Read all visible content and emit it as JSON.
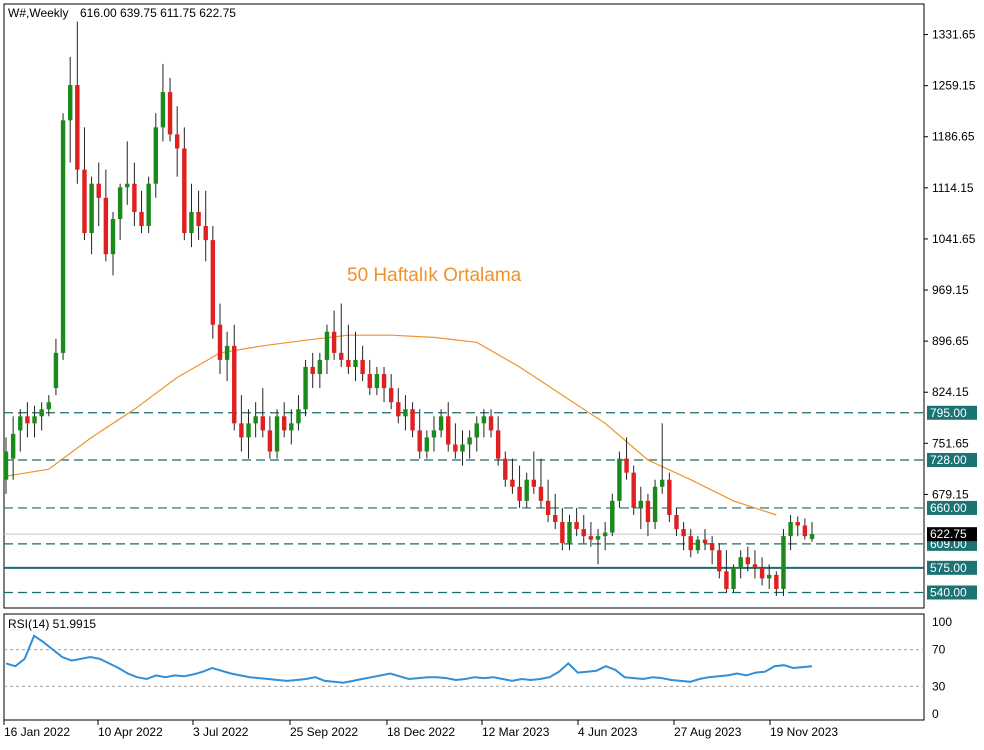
{
  "header": {
    "symbol": "W#,Weekly",
    "ohlc": "616.00 639.75 611.75 622.75"
  },
  "annotation": "50 Haftalık Ortalama",
  "rsi_header": "RSI(14) 51.9915",
  "colors": {
    "bull": "#1a8a1a",
    "bear": "#e02020",
    "ma": "#f0922b",
    "level_line": "#1a6b6b",
    "level_label_bg": "#1b7373",
    "rsi": "#2f8fd8",
    "annotation": "#f0922b"
  },
  "chart_data": [
    {
      "type": "candlestick",
      "title": "",
      "x_tick_labels": [
        "16 Jan 2022",
        "10 Apr 2022",
        "3 Jul 2022",
        "25 Sep 2022",
        "18 Dec 2022",
        "12 Mar 2023",
        "4 Jun 2023",
        "27 Aug 2023",
        "19 Nov 2023"
      ],
      "y_tick_labels": [
        "1331.65",
        "1259.15",
        "1186.65",
        "1114.15",
        "1041.65",
        "969.15",
        "896.65",
        "824.15",
        "751.65",
        "679.15"
      ],
      "ylim": [
        518,
        1375
      ],
      "levels": [
        {
          "value": 795.0,
          "label": "795.00",
          "style": "dashed"
        },
        {
          "value": 728.0,
          "label": "728.00",
          "style": "dashed"
        },
        {
          "value": 660.0,
          "label": "660.00",
          "style": "dashed"
        },
        {
          "value": 609.0,
          "label": "609.00",
          "style": "dashed"
        },
        {
          "value": 575.0,
          "label": "575.00",
          "style": "solid"
        },
        {
          "value": 540.0,
          "label": "540.00",
          "style": "dashed"
        }
      ],
      "last_price": {
        "value": 622.75,
        "label": "622.75"
      },
      "candles": [
        [
          700,
          760,
          680,
          740
        ],
        [
          730,
          790,
          700,
          765
        ],
        [
          770,
          800,
          740,
          790
        ],
        [
          790,
          810,
          760,
          780
        ],
        [
          780,
          805,
          760,
          790
        ],
        [
          790,
          810,
          770,
          800
        ],
        [
          800,
          820,
          790,
          810
        ],
        [
          830,
          900,
          820,
          880
        ],
        [
          880,
          1220,
          870,
          1210
        ],
        [
          1210,
          1300,
          1150,
          1260
        ],
        [
          1260,
          1350,
          1120,
          1140
        ],
        [
          1140,
          1200,
          1040,
          1050
        ],
        [
          1050,
          1130,
          1020,
          1120
        ],
        [
          1120,
          1150,
          1060,
          1100
        ],
        [
          1100,
          1140,
          1010,
          1020
        ],
        [
          1020,
          1080,
          990,
          1070
        ],
        [
          1070,
          1120,
          1040,
          1115
        ],
        [
          1115,
          1180,
          1090,
          1120
        ],
        [
          1120,
          1150,
          1060,
          1080
        ],
        [
          1080,
          1110,
          1050,
          1060
        ],
        [
          1060,
          1130,
          1050,
          1120
        ],
        [
          1120,
          1220,
          1100,
          1200
        ],
        [
          1200,
          1290,
          1180,
          1250
        ],
        [
          1250,
          1270,
          1180,
          1190
        ],
        [
          1190,
          1230,
          1130,
          1170
        ],
        [
          1170,
          1200,
          1040,
          1050
        ],
        [
          1050,
          1120,
          1030,
          1080
        ],
        [
          1080,
          1110,
          1040,
          1060
        ],
        [
          1060,
          1110,
          1010,
          1040
        ],
        [
          1040,
          1060,
          900,
          920
        ],
        [
          920,
          950,
          850,
          870
        ],
        [
          870,
          910,
          840,
          890
        ],
        [
          890,
          920,
          770,
          780
        ],
        [
          780,
          820,
          740,
          760
        ],
        [
          760,
          800,
          730,
          780
        ],
        [
          780,
          810,
          760,
          790
        ],
        [
          790,
          830,
          760,
          770
        ],
        [
          770,
          790,
          730,
          740
        ],
        [
          740,
          800,
          730,
          790
        ],
        [
          790,
          810,
          760,
          770
        ],
        [
          770,
          800,
          750,
          780
        ],
        [
          780,
          820,
          770,
          800
        ],
        [
          800,
          870,
          790,
          860
        ],
        [
          860,
          880,
          830,
          850
        ],
        [
          850,
          880,
          830,
          870
        ],
        [
          870,
          920,
          850,
          910
        ],
        [
          910,
          940,
          870,
          880
        ],
        [
          880,
          950,
          860,
          870
        ],
        [
          870,
          920,
          850,
          860
        ],
        [
          860,
          910,
          840,
          870
        ],
        [
          870,
          890,
          840,
          850
        ],
        [
          850,
          870,
          820,
          830
        ],
        [
          830,
          860,
          820,
          850
        ],
        [
          850,
          860,
          810,
          830
        ],
        [
          830,
          850,
          800,
          810
        ],
        [
          810,
          830,
          780,
          790
        ],
        [
          790,
          820,
          770,
          800
        ],
        [
          800,
          810,
          760,
          770
        ],
        [
          770,
          800,
          730,
          740
        ],
        [
          740,
          770,
          730,
          760
        ],
        [
          760,
          790,
          740,
          770
        ],
        [
          770,
          800,
          760,
          790
        ],
        [
          790,
          810,
          740,
          750
        ],
        [
          750,
          780,
          730,
          740
        ],
        [
          740,
          770,
          720,
          750
        ],
        [
          750,
          770,
          730,
          760
        ],
        [
          760,
          790,
          740,
          780
        ],
        [
          780,
          800,
          760,
          790
        ],
        [
          790,
          800,
          760,
          770
        ],
        [
          770,
          790,
          720,
          730
        ],
        [
          730,
          740,
          690,
          700
        ],
        [
          700,
          730,
          680,
          690
        ],
        [
          690,
          720,
          660,
          670
        ],
        [
          670,
          710,
          660,
          700
        ],
        [
          700,
          740,
          680,
          690
        ],
        [
          690,
          730,
          660,
          670
        ],
        [
          670,
          700,
          640,
          650
        ],
        [
          650,
          680,
          630,
          640
        ],
        [
          640,
          660,
          600,
          610
        ],
        [
          610,
          650,
          600,
          640
        ],
        [
          640,
          660,
          620,
          630
        ],
        [
          630,
          650,
          610,
          620
        ],
        [
          620,
          640,
          605,
          615
        ],
        [
          615,
          630,
          580,
          620
        ],
        [
          620,
          640,
          600,
          625
        ],
        [
          625,
          680,
          620,
          670
        ],
        [
          670,
          740,
          660,
          730
        ],
        [
          730,
          760,
          700,
          710
        ],
        [
          710,
          720,
          650,
          660
        ],
        [
          660,
          690,
          630,
          670
        ],
        [
          670,
          680,
          620,
          640
        ],
        [
          640,
          700,
          630,
          690
        ],
        [
          690,
          780,
          680,
          700
        ],
        [
          700,
          710,
          640,
          650
        ],
        [
          650,
          660,
          620,
          630
        ],
        [
          630,
          640,
          600,
          620
        ],
        [
          620,
          630,
          590,
          600
        ],
        [
          600,
          620,
          595,
          615
        ],
        [
          615,
          630,
          600,
          610
        ],
        [
          610,
          620,
          580,
          600
        ],
        [
          600,
          610,
          560,
          570
        ],
        [
          570,
          600,
          540,
          545
        ],
        [
          545,
          580,
          540,
          575
        ],
        [
          575,
          600,
          560,
          590
        ],
        [
          590,
          605,
          570,
          580
        ],
        [
          580,
          600,
          560,
          575
        ],
        [
          575,
          590,
          550,
          560
        ],
        [
          560,
          580,
          545,
          565
        ],
        [
          565,
          570,
          535,
          545
        ],
        [
          545,
          630,
          535,
          620
        ],
        [
          620,
          650,
          600,
          640
        ],
        [
          640,
          648,
          620,
          635
        ],
        [
          635,
          645,
          615,
          620
        ],
        [
          616,
          640,
          612,
          623
        ]
      ],
      "ma50": [
        [
          0,
          705
        ],
        [
          6,
          715
        ],
        [
          12,
          760
        ],
        [
          18,
          800
        ],
        [
          24,
          845
        ],
        [
          30,
          880
        ],
        [
          36,
          890
        ],
        [
          42,
          898
        ],
        [
          48,
          905
        ],
        [
          54,
          905
        ],
        [
          60,
          902
        ],
        [
          66,
          895
        ],
        [
          72,
          860
        ],
        [
          78,
          820
        ],
        [
          84,
          780
        ],
        [
          90,
          728
        ],
        [
          96,
          700
        ],
        [
          102,
          670
        ],
        [
          108,
          650
        ]
      ]
    },
    {
      "type": "line",
      "title": "",
      "y_tick_labels": [
        "100",
        "70",
        "30",
        "0"
      ],
      "ylim": [
        0,
        100
      ],
      "levels": [
        70,
        30
      ],
      "values": [
        55,
        52,
        60,
        85,
        78,
        70,
        62,
        58,
        60,
        62,
        60,
        55,
        50,
        44,
        40,
        38,
        42,
        40,
        42,
        41,
        43,
        46,
        50,
        47,
        44,
        42,
        40,
        39,
        38,
        37,
        36,
        37,
        38,
        40,
        36,
        35,
        34,
        36,
        38,
        40,
        42,
        44,
        41,
        38,
        39,
        40,
        40,
        39,
        37,
        38,
        40,
        39,
        40,
        38,
        36,
        38,
        37,
        38,
        40,
        46,
        55,
        45,
        46,
        47,
        52,
        48,
        40,
        39,
        38,
        40,
        39,
        37,
        36,
        35,
        38,
        40,
        41,
        42,
        44,
        42,
        45,
        46,
        52,
        53,
        50,
        51,
        52
      ]
    }
  ]
}
